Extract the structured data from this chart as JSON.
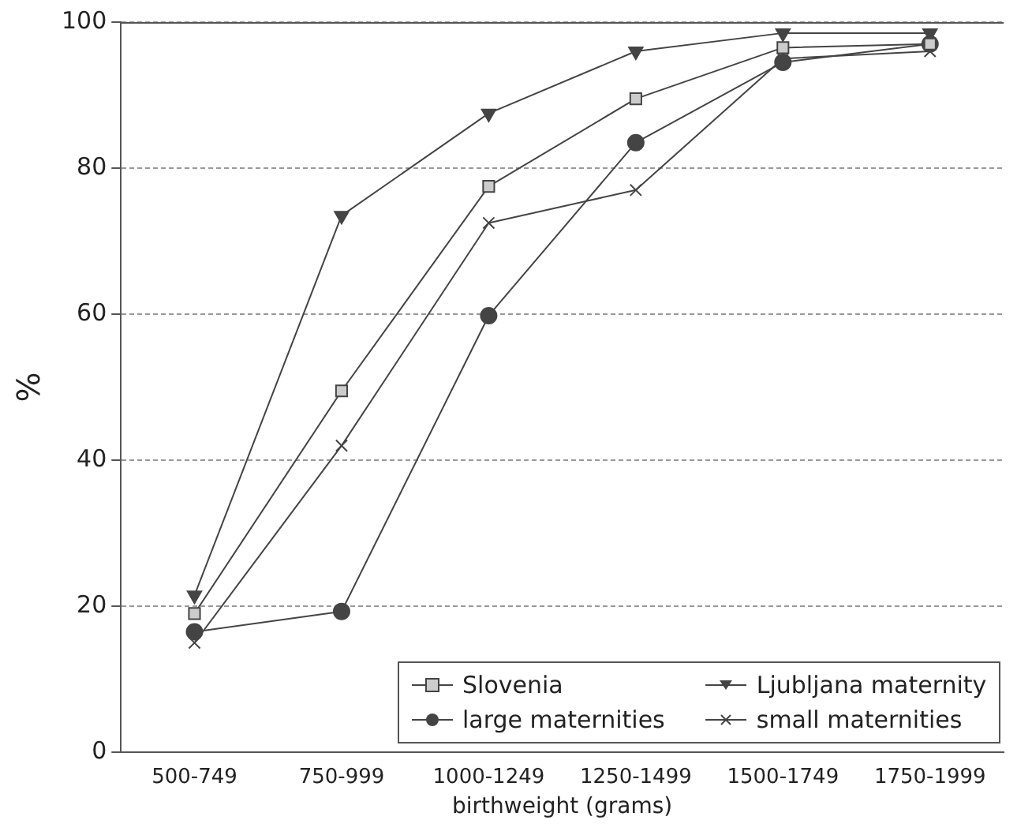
{
  "chart_data": {
    "type": "line",
    "xlabel": "birthweight (grams)",
    "ylabel": "%",
    "categories": [
      "500-749",
      "750-999",
      "1000-1249",
      "1250-1499",
      "1500-1749",
      "1750-1999"
    ],
    "series": [
      {
        "name": "Slovenia",
        "color": "#444444",
        "marker": "square",
        "values": [
          19,
          49.5,
          77.5,
          89.5,
          96.5,
          97
        ]
      },
      {
        "name": "Ljubljana maternity",
        "color": "#444444",
        "marker": "triangle",
        "values": [
          21.5,
          73.5,
          87.5,
          96,
          98.5,
          98.5
        ]
      },
      {
        "name": "large maternities",
        "color": "#444444",
        "marker": "circle",
        "values": [
          16.5,
          19.3,
          59.8,
          83.5,
          94.5,
          97
        ]
      },
      {
        "name": "small maternities",
        "color": "#444444",
        "marker": "cross",
        "values": [
          15,
          42,
          72.5,
          77,
          95,
          96
        ]
      }
    ],
    "ylim": [
      0,
      100
    ],
    "yticks": [
      0,
      20,
      40,
      60,
      80,
      100
    ],
    "grid": "y",
    "legend": "bottom right",
    "line_style": "solid"
  }
}
